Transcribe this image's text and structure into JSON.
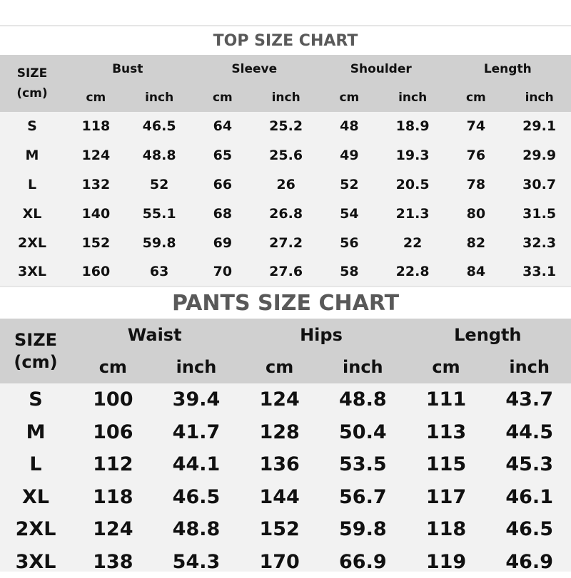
{
  "top": {
    "title": "TOP SIZE CHART",
    "size_header": [
      "SIZE",
      "(cm)"
    ],
    "groups": [
      "Bust",
      "Sleeve",
      "Shoulder",
      "Length"
    ],
    "units": [
      "cm",
      "inch",
      "cm",
      "inch",
      "cm",
      "inch",
      "cm",
      "inch"
    ],
    "rows": [
      [
        "S",
        "118",
        "46.5",
        "64",
        "25.2",
        "48",
        "18.9",
        "74",
        "29.1"
      ],
      [
        "M",
        "124",
        "48.8",
        "65",
        "25.6",
        "49",
        "19.3",
        "76",
        "29.9"
      ],
      [
        "L",
        "132",
        "52",
        "66",
        "26",
        "52",
        "20.5",
        "78",
        "30.7"
      ],
      [
        "XL",
        "140",
        "55.1",
        "68",
        "26.8",
        "54",
        "21.3",
        "80",
        "31.5"
      ],
      [
        "2XL",
        "152",
        "59.8",
        "69",
        "27.2",
        "56",
        "22",
        "82",
        "32.3"
      ],
      [
        "3XL",
        "160",
        "63",
        "70",
        "27.6",
        "58",
        "22.8",
        "84",
        "33.1"
      ]
    ]
  },
  "pants": {
    "title": "PANTS SIZE CHART",
    "size_header": [
      "SIZE",
      "(cm)"
    ],
    "groups": [
      "Waist",
      "Hips",
      "Length"
    ],
    "units": [
      "cm",
      "inch",
      "cm",
      "inch",
      "cm",
      "inch"
    ],
    "rows": [
      [
        "S",
        "100",
        "39.4",
        "124",
        "48.8",
        "111",
        "43.7"
      ],
      [
        "M",
        "106",
        "41.7",
        "128",
        "50.4",
        "113",
        "44.5"
      ],
      [
        "L",
        "112",
        "44.1",
        "136",
        "53.5",
        "115",
        "45.3"
      ],
      [
        "XL",
        "118",
        "46.5",
        "144",
        "56.7",
        "117",
        "46.1"
      ],
      [
        "2XL",
        "124",
        "48.8",
        "152",
        "59.8",
        "118",
        "46.5"
      ],
      [
        "3XL",
        "138",
        "54.3",
        "170",
        "66.9",
        "119",
        "46.9"
      ]
    ]
  },
  "colors": {
    "header_bg": "#d0d0d0",
    "body_bg": "#f2f2f2",
    "title_text": "#595959"
  }
}
